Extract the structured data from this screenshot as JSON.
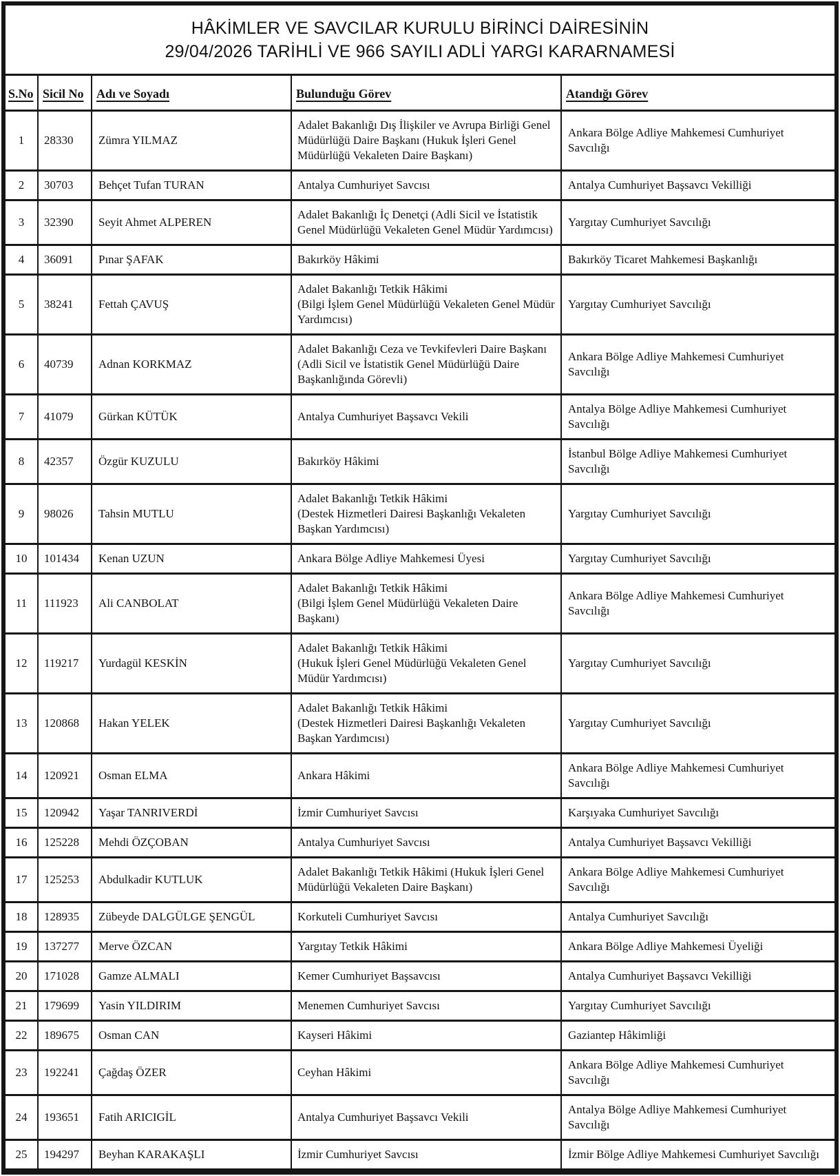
{
  "title": {
    "line1": "HÂKİMLER VE SAVCILAR KURULU BİRİNCİ DAİRESİNİN",
    "line2": "29/04/2026 TARİHLİ VE 966 SAYILI ADLİ YARGI KARARNAMESİ"
  },
  "table": {
    "columns": [
      "S.No",
      "Sicil No",
      "Adı ve Soyadı",
      "Bulunduğu Görev",
      "Atandığı Görev"
    ],
    "rows": [
      {
        "no": "1",
        "sicil": "28330",
        "name": "Zümra YILMAZ",
        "current": "Adalet Bakanlığı Dış İlişkiler ve Avrupa Birliği Genel Müdürlüğü Daire Başkanı (Hukuk İşleri Genel Müdürlüğü Vekaleten Daire Başkanı)",
        "assigned": "Ankara Bölge Adliye Mahkemesi Cumhuriyet Savcılığı"
      },
      {
        "no": "2",
        "sicil": "30703",
        "name": "Behçet Tufan TURAN",
        "current": "Antalya Cumhuriyet Savcısı",
        "assigned": "Antalya Cumhuriyet Başsavcı Vekilliği"
      },
      {
        "no": "3",
        "sicil": "32390",
        "name": "Seyit Ahmet ALPEREN",
        "current": "Adalet Bakanlığı İç Denetçi (Adli Sicil ve İstatistik Genel Müdürlüğü Vekaleten Genel Müdür Yardımcısı)",
        "assigned": "Yargıtay Cumhuriyet Savcılığı"
      },
      {
        "no": "4",
        "sicil": "36091",
        "name": "Pınar ŞAFAK",
        "current": "Bakırköy Hâkimi",
        "assigned": "Bakırköy Ticaret Mahkemesi Başkanlığı"
      },
      {
        "no": "5",
        "sicil": "38241",
        "name": "Fettah ÇAVUŞ",
        "current": "Adalet Bakanlığı Tetkik Hâkimi\n(Bilgi İşlem Genel Müdürlüğü Vekaleten Genel Müdür Yardımcısı)",
        "assigned": "Yargıtay Cumhuriyet Savcılığı"
      },
      {
        "no": "6",
        "sicil": "40739",
        "name": "Adnan KORKMAZ",
        "current": "Adalet Bakanlığı Ceza ve Tevkifevleri Daire Başkanı (Adli Sicil ve İstatistik Genel Müdürlüğü Daire Başkanlığında Görevli)",
        "assigned": "Ankara Bölge Adliye Mahkemesi Cumhuriyet Savcılığı"
      },
      {
        "no": "7",
        "sicil": "41079",
        "name": "Gürkan KÜTÜK",
        "current": "Antalya Cumhuriyet Başsavcı Vekili",
        "assigned": "Antalya Bölge Adliye Mahkemesi Cumhuriyet Savcılığı"
      },
      {
        "no": "8",
        "sicil": "42357",
        "name": "Özgür KUZULU",
        "current": "Bakırköy Hâkimi",
        "assigned": "İstanbul Bölge Adliye Mahkemesi Cumhuriyet Savcılığı"
      },
      {
        "no": "9",
        "sicil": "98026",
        "name": "Tahsin MUTLU",
        "current": "Adalet Bakanlığı Tetkik Hâkimi\n(Destek Hizmetleri Dairesi Başkanlığı Vekaleten Başkan Yardımcısı)",
        "assigned": "Yargıtay Cumhuriyet Savcılığı"
      },
      {
        "no": "10",
        "sicil": "101434",
        "name": "Kenan UZUN",
        "current": "Ankara Bölge Adliye Mahkemesi Üyesi",
        "assigned": "Yargıtay Cumhuriyet Savcılığı"
      },
      {
        "no": "11",
        "sicil": "111923",
        "name": "Ali CANBOLAT",
        "current": "Adalet Bakanlığı Tetkik Hâkimi\n(Bilgi İşlem Genel Müdürlüğü Vekaleten Daire Başkanı)",
        "assigned": "Ankara Bölge Adliye Mahkemesi Cumhuriyet Savcılığı"
      },
      {
        "no": "12",
        "sicil": "119217",
        "name": "Yurdagül KESKİN",
        "current": "Adalet Bakanlığı Tetkik Hâkimi\n(Hukuk İşleri Genel Müdürlüğü Vekaleten Genel Müdür Yardımcısı)",
        "assigned": "Yargıtay Cumhuriyet Savcılığı"
      },
      {
        "no": "13",
        "sicil": "120868",
        "name": "Hakan YELEK",
        "current": "Adalet Bakanlığı Tetkik Hâkimi\n(Destek Hizmetleri Dairesi Başkanlığı Vekaleten Başkan Yardımcısı)",
        "assigned": "Yargıtay Cumhuriyet Savcılığı"
      },
      {
        "no": "14",
        "sicil": "120921",
        "name": "Osman ELMA",
        "current": "Ankara Hâkimi",
        "assigned": "Ankara Bölge Adliye Mahkemesi Cumhuriyet Savcılığı"
      },
      {
        "no": "15",
        "sicil": "120942",
        "name": "Yaşar TANRIVERDİ",
        "current": "İzmir Cumhuriyet Savcısı",
        "assigned": "Karşıyaka Cumhuriyet Savcılığı"
      },
      {
        "no": "16",
        "sicil": "125228",
        "name": "Mehdi ÖZÇOBAN",
        "current": "Antalya Cumhuriyet Savcısı",
        "assigned": "Antalya Cumhuriyet Başsavcı Vekilliği"
      },
      {
        "no": "17",
        "sicil": "125253",
        "name": "Abdulkadir KUTLUK",
        "current": "Adalet Bakanlığı Tetkik Hâkimi (Hukuk İşleri Genel Müdürlüğü Vekaleten Daire Başkanı)",
        "assigned": "Ankara Bölge Adliye Mahkemesi Cumhuriyet Savcılığı"
      },
      {
        "no": "18",
        "sicil": "128935",
        "name": "Zübeyde DALGÜLGE ŞENGÜL",
        "current": "Korkuteli Cumhuriyet Savcısı",
        "assigned": "Antalya Cumhuriyet Savcılığı"
      },
      {
        "no": "19",
        "sicil": "137277",
        "name": "Merve ÖZCAN",
        "current": "Yargıtay Tetkik Hâkimi",
        "assigned": "Ankara Bölge Adliye Mahkemesi Üyeliği"
      },
      {
        "no": "20",
        "sicil": "171028",
        "name": "Gamze ALMALI",
        "current": "Kemer Cumhuriyet Başsavcısı",
        "assigned": "Antalya Cumhuriyet Başsavcı Vekilliği"
      },
      {
        "no": "21",
        "sicil": "179699",
        "name": "Yasin YILDIRIM",
        "current": "Menemen Cumhuriyet Savcısı",
        "assigned": "Yargıtay Cumhuriyet Savcılığı"
      },
      {
        "no": "22",
        "sicil": "189675",
        "name": "Osman CAN",
        "current": "Kayseri Hâkimi",
        "assigned": "Gaziantep Hâkimliği"
      },
      {
        "no": "23",
        "sicil": "192241",
        "name": "Çağdaş ÖZER",
        "current": "Ceyhan Hâkimi",
        "assigned": "Ankara Bölge Adliye Mahkemesi Cumhuriyet Savcılığı"
      },
      {
        "no": "24",
        "sicil": "193651",
        "name": "Fatih ARICIGİL",
        "current": "Antalya Cumhuriyet Başsavcı Vekili",
        "assigned": "Antalya Bölge Adliye Mahkemesi Cumhuriyet Savcılığı"
      },
      {
        "no": "25",
        "sicil": "194297",
        "name": "Beyhan KARAKAŞLI",
        "current": "İzmir Cumhuriyet Savcısı",
        "assigned": "İzmir Bölge Adliye Mahkemesi Cumhuriyet Savcılığı"
      }
    ]
  },
  "colors": {
    "border": "#161616",
    "text": "#141414",
    "background": "#ffffff"
  }
}
